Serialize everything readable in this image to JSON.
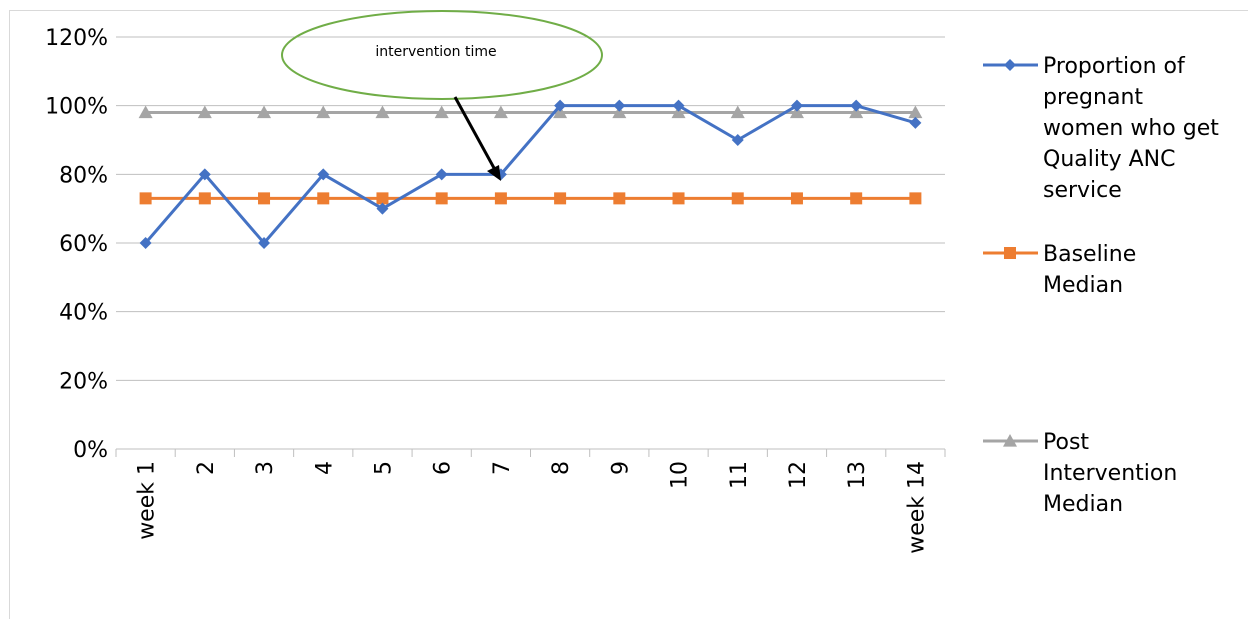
{
  "chart_data": {
    "type": "line",
    "categories": [
      "week 1",
      "2",
      "3",
      "4",
      "5",
      "6",
      "7",
      "8",
      "9",
      "10",
      "11",
      "12",
      "13",
      "week 14"
    ],
    "series": [
      {
        "name": "Proportion of pregnant women who get Quality ANC service",
        "legend_lines": [
          "Proportion of",
          "pregnant",
          "women who get",
          "Quality ANC",
          "service"
        ],
        "color": "#4472c4",
        "marker": "diamond",
        "values": [
          0.6,
          0.8,
          0.6,
          0.8,
          0.7,
          0.8,
          0.8,
          1.0,
          1.0,
          1.0,
          0.9,
          1.0,
          1.0,
          0.95
        ]
      },
      {
        "name": "Baseline Median",
        "legend_lines": [
          "Baseline",
          "Median"
        ],
        "color": "#ed7d31",
        "marker": "square",
        "values": [
          0.73,
          0.73,
          0.73,
          0.73,
          0.73,
          0.73,
          0.73,
          0.73,
          0.73,
          0.73,
          0.73,
          0.73,
          0.73,
          0.73
        ]
      },
      {
        "name": "Post Intervention Median",
        "legend_lines": [
          "Post",
          "Intervention",
          "Median"
        ],
        "color": "#a5a5a5",
        "marker": "triangle",
        "values": [
          0.98,
          0.98,
          0.98,
          0.98,
          0.98,
          0.98,
          0.98,
          0.98,
          0.98,
          0.98,
          0.98,
          0.98,
          0.98,
          0.98
        ]
      }
    ],
    "ylim": [
      0,
      1.2
    ],
    "yticks": [
      "0%",
      "20%",
      "40%",
      "60%",
      "80%",
      "100%",
      "120%"
    ],
    "grid": true,
    "legend_position": "right",
    "annotation": {
      "text": "intervention time",
      "points_to_category": "7",
      "points_to_value": 0.8
    }
  }
}
